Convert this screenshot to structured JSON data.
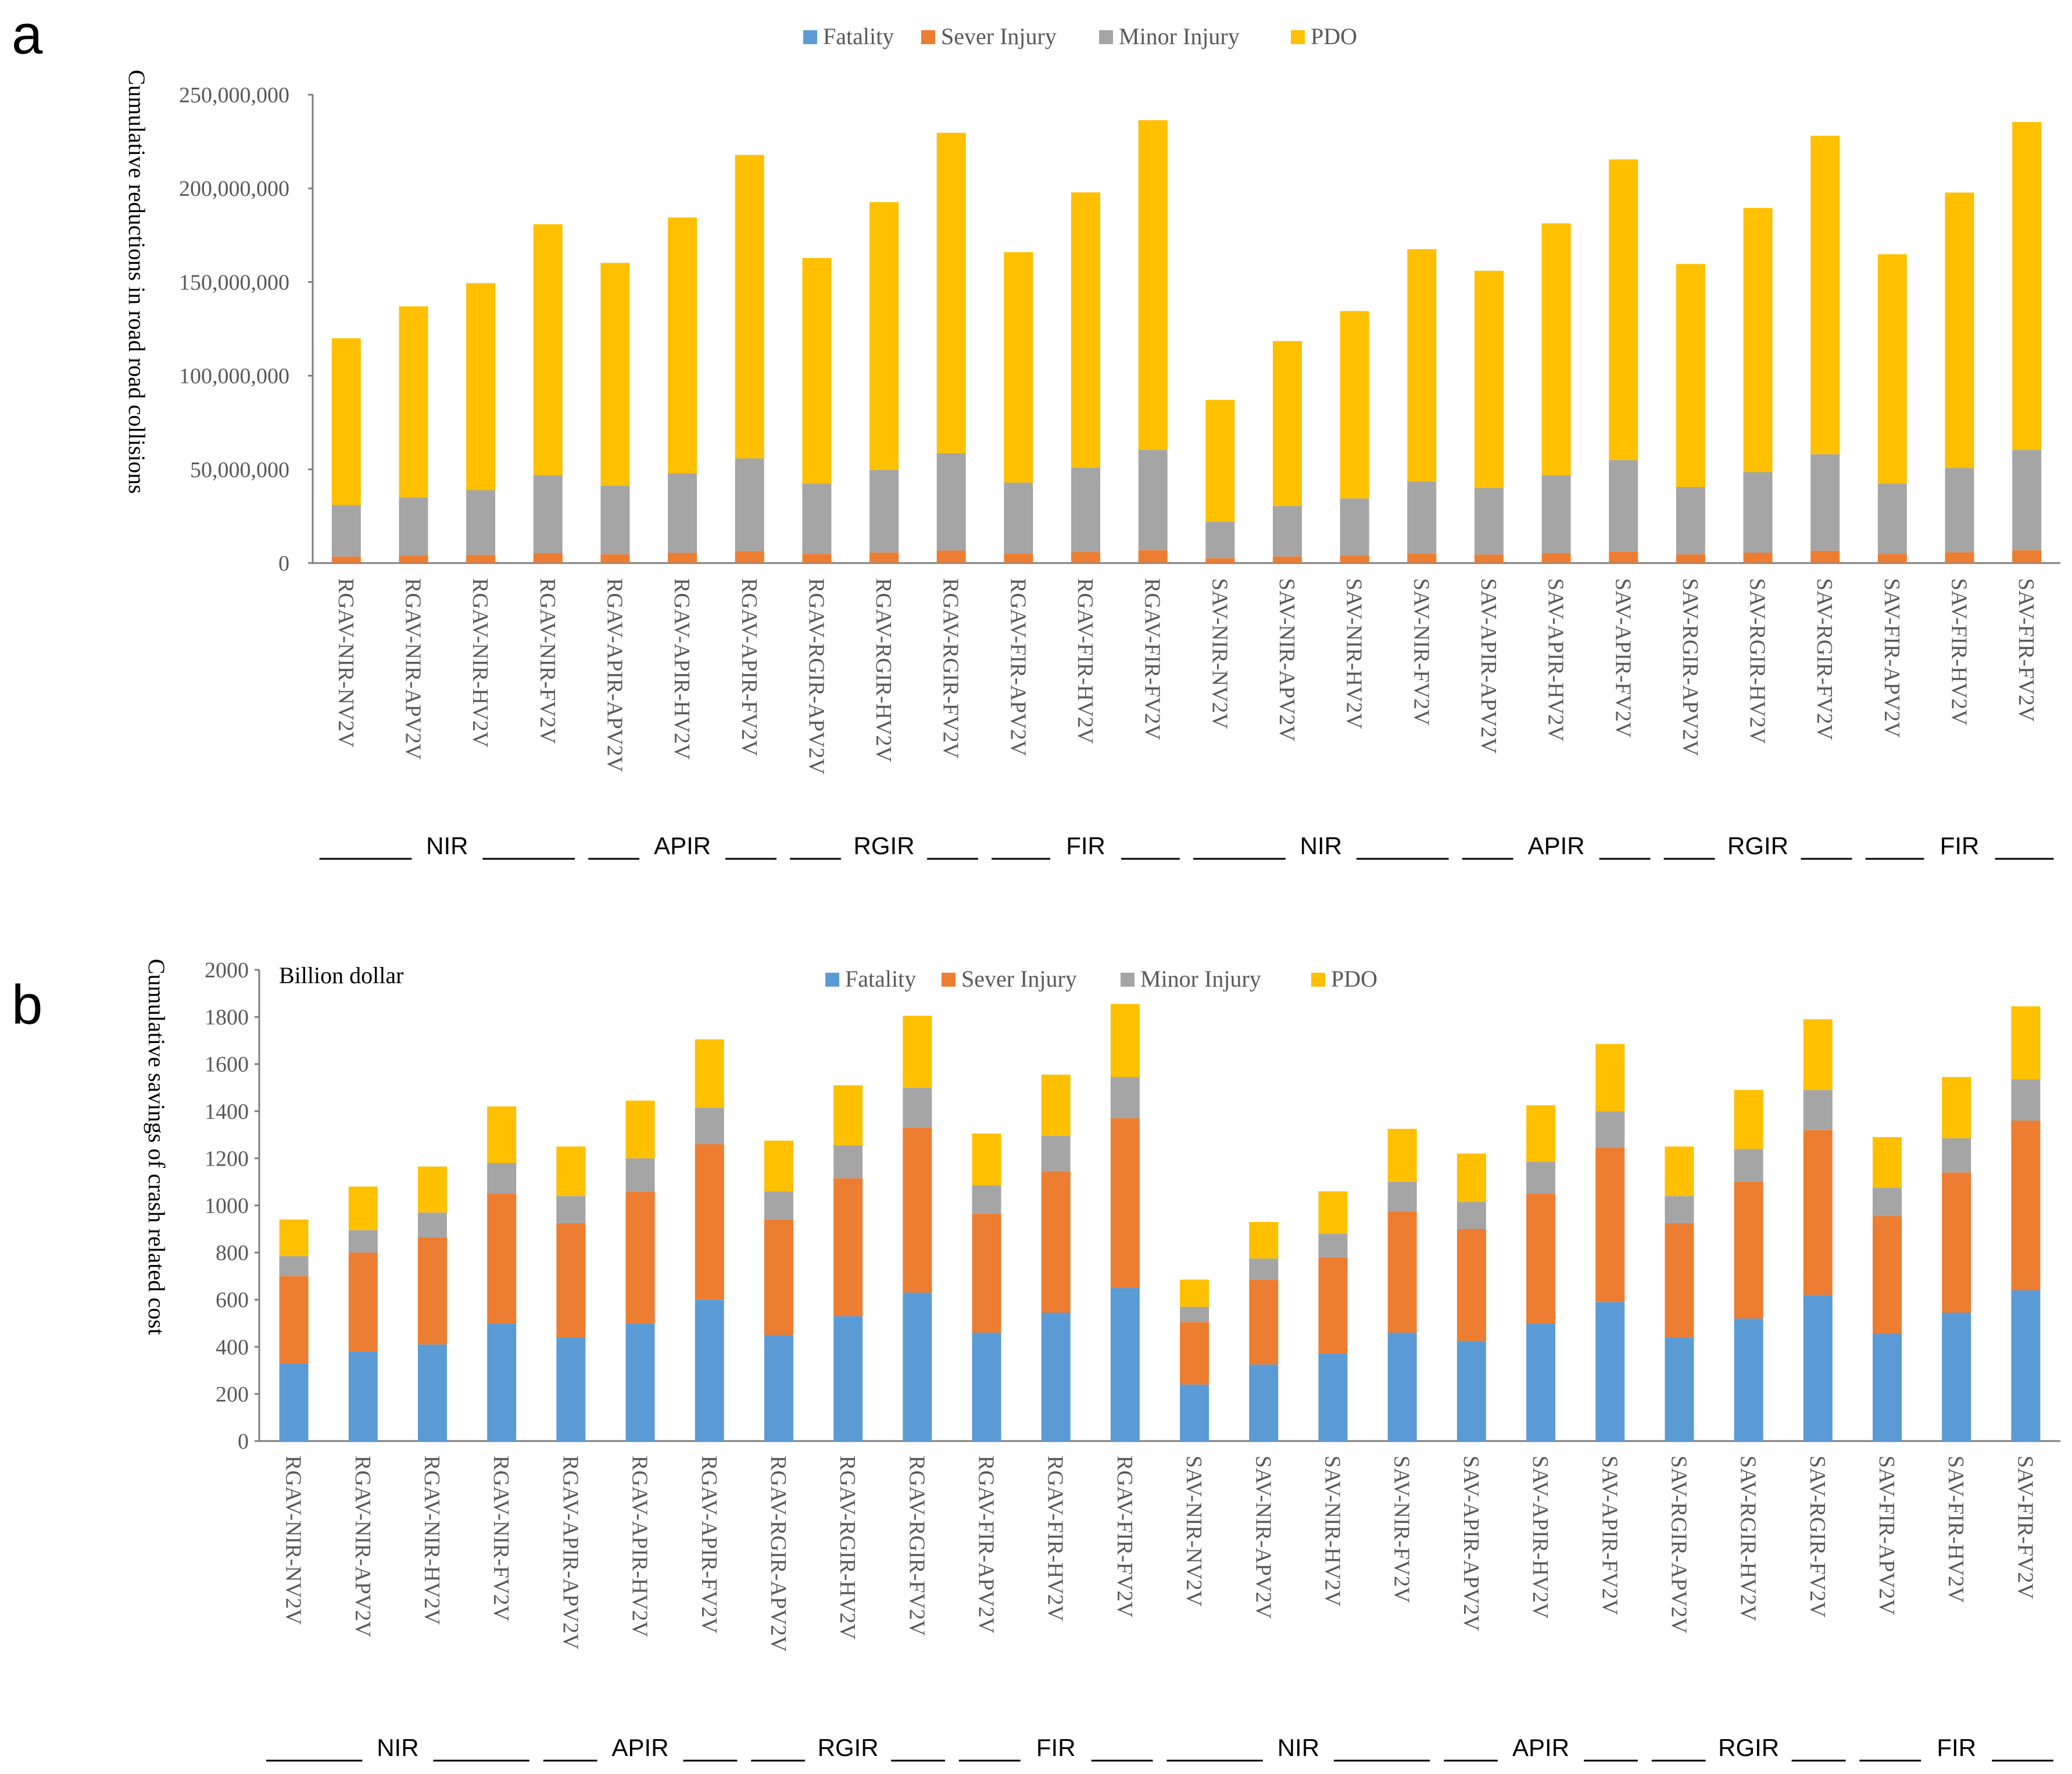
{
  "categories": [
    "RGAV-NIR-NV2V",
    "RGAV-NIR-APV2V",
    "RGAV-NIR-HV2V",
    "RGAV-NIR-FV2V",
    "RGAV-APIR-APV2V",
    "RGAV-APIR-HV2V",
    "RGAV-APIR-FV2V",
    "RGAV-RGIR-APV2V",
    "RGAV-RGIR-HV2V",
    "RGAV-RGIR-FV2V",
    "RGAV-FIR-APV2V",
    "RGAV-FIR-HV2V",
    "RGAV-FIR-FV2V",
    "SAV-NIR-NV2V",
    "SAV-NIR-APV2V",
    "SAV-NIR-HV2V",
    "SAV-NIR-FV2V",
    "SAV-APIR-APV2V",
    "SAV-APIR-HV2V",
    "SAV-APIR-FV2V",
    "SAV-RGIR-APV2V",
    "SAV-RGIR-HV2V",
    "SAV-RGIR-FV2V",
    "SAV-FIR-APV2V",
    "SAV-FIR-HV2V",
    "SAV-FIR-FV2V"
  ],
  "colors": {
    "Fatality": "#5b9bd5",
    "Sever Injury": "#ed7d31",
    "Minor Injury": "#a5a5a5",
    "PDO": "#ffc000"
  },
  "groups": [
    {
      "label": "NIR",
      "first": 0,
      "last": 3
    },
    {
      "label": "APIR",
      "first": 4,
      "last": 6
    },
    {
      "label": "RGIR",
      "first": 7,
      "last": 9
    },
    {
      "label": "FIR",
      "first": 10,
      "last": 12
    },
    {
      "label": "NIR",
      "first": 13,
      "last": 16
    },
    {
      "label": "APIR",
      "first": 17,
      "last": 19
    },
    {
      "label": "RGIR",
      "first": 20,
      "last": 22
    },
    {
      "label": "FIR",
      "first": 23,
      "last": 25
    }
  ],
  "chart_data": [
    {
      "panel": "a",
      "type": "bar",
      "stacked": true,
      "title": "",
      "xlabel": "",
      "ylabel": "Cumulative reductions in road road collisions",
      "ylim": [
        0,
        250000000
      ],
      "yticks": [
        0,
        50000000,
        100000000,
        150000000,
        200000000,
        250000000
      ],
      "ytick_labels": [
        "0",
        "50,000,000",
        "100,000,000",
        "150,000,000",
        "200,000,000",
        "250,000,000"
      ],
      "legend": [
        "Fatality",
        "Sever Injury",
        "Minor Injury",
        "PDO"
      ],
      "legend_position": "top",
      "series": [
        {
          "name": "Fatality",
          "values": [
            100000,
            120000,
            130000,
            150000,
            140000,
            160000,
            180000,
            140000,
            160000,
            190000,
            150000,
            170000,
            200000,
            80000,
            100000,
            120000,
            150000,
            130000,
            150000,
            180000,
            130000,
            160000,
            190000,
            140000,
            170000,
            200000
          ]
        },
        {
          "name": "Sever Injury",
          "values": [
            3400000,
            3900000,
            4300000,
            5200000,
            4600000,
            5300000,
            6200000,
            4700000,
            5500000,
            6500000,
            4800000,
            5700000,
            6700000,
            2500000,
            3400000,
            3900000,
            4900000,
            4400000,
            5200000,
            6100000,
            4500000,
            5400000,
            6400000,
            4700000,
            5600000,
            6700000
          ]
        },
        {
          "name": "Minor Injury",
          "values": [
            27500000,
            31000000,
            34500000,
            41500000,
            36500000,
            42500000,
            49500000,
            37500000,
            44000000,
            52000000,
            38000000,
            45000000,
            53500000,
            19500000,
            27000000,
            30500000,
            38500000,
            35500000,
            41500000,
            48700000,
            36000000,
            43000000,
            51500000,
            37500000,
            45000000,
            53500000
          ]
        },
        {
          "name": "PDO",
          "values": [
            89000000,
            102000000,
            110500000,
            134000000,
            119000000,
            136500000,
            162000000,
            120500000,
            143000000,
            171000000,
            123000000,
            147000000,
            176000000,
            65000000,
            88000000,
            100000000,
            124000000,
            116000000,
            134500000,
            160500000,
            119000000,
            141000000,
            170000000,
            122500000,
            147000000,
            175000000
          ]
        }
      ],
      "group_labels": [
        "NIR",
        "APIR",
        "RGIR",
        "FIR",
        "NIR",
        "APIR",
        "RGIR",
        "FIR"
      ]
    },
    {
      "panel": "b",
      "type": "bar",
      "stacked": true,
      "title": "",
      "unit_label": "Billion dollar",
      "xlabel": "",
      "ylabel": "Cumulative savings of crash related cost",
      "ylim": [
        0,
        2000
      ],
      "yticks": [
        0,
        200,
        400,
        600,
        800,
        1000,
        1200,
        1400,
        1600,
        1800,
        2000
      ],
      "ytick_labels": [
        "0",
        "200",
        "400",
        "600",
        "800",
        "1000",
        "1200",
        "1400",
        "1600",
        "1800",
        "2000"
      ],
      "legend": [
        "Fatality",
        "Sever Injury",
        "Minor Injury",
        "PDO"
      ],
      "legend_position": "top",
      "series": [
        {
          "name": "Fatality",
          "values": [
            330,
            380,
            410,
            500,
            440,
            500,
            600,
            450,
            530,
            630,
            460,
            545,
            650,
            240,
            325,
            370,
            460,
            425,
            500,
            590,
            440,
            520,
            620,
            455,
            545,
            640
          ]
        },
        {
          "name": "Sever Injury",
          "values": [
            370,
            420,
            455,
            550,
            485,
            560,
            660,
            490,
            585,
            700,
            505,
            600,
            720,
            265,
            360,
            410,
            515,
            475,
            550,
            655,
            485,
            580,
            700,
            500,
            595,
            720
          ]
        },
        {
          "name": "Minor Injury",
          "values": [
            85,
            95,
            105,
            130,
            115,
            140,
            155,
            120,
            140,
            170,
            120,
            150,
            175,
            65,
            90,
            100,
            125,
            115,
            135,
            155,
            115,
            140,
            170,
            120,
            145,
            175
          ]
        },
        {
          "name": "PDO",
          "values": [
            155,
            185,
            195,
            240,
            210,
            245,
            290,
            215,
            255,
            305,
            220,
            260,
            310,
            115,
            155,
            180,
            225,
            205,
            240,
            285,
            210,
            250,
            300,
            215,
            260,
            310
          ]
        }
      ],
      "group_labels": [
        "NIR",
        "APIR",
        "RGIR",
        "FIR",
        "NIR",
        "APIR",
        "RGIR",
        "FIR"
      ]
    }
  ]
}
